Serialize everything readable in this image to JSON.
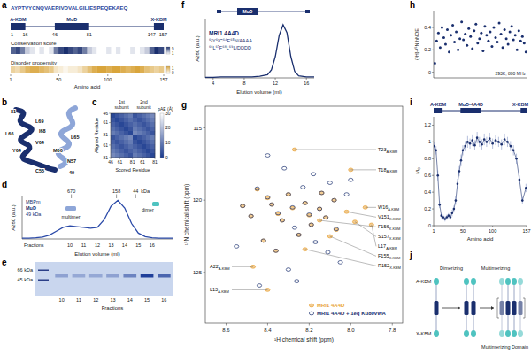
{
  "panel_letters": [
    "a",
    "b",
    "c",
    "d",
    "e",
    "f",
    "g",
    "h",
    "i",
    "j"
  ],
  "a": {
    "sequence": "AYPTVYCNQVAERIVDVALGILIESPEQEKAEQ",
    "domains": [
      {
        "label": "A-KBM",
        "start": 1,
        "end": 16
      },
      {
        "label": "MuD",
        "start": 46,
        "end": 81
      },
      {
        "label": "X-KBM",
        "start": 147,
        "end": 157
      }
    ],
    "conservation_title": "Conservation score",
    "conservation": [
      7,
      8,
      6,
      3,
      2,
      1,
      2,
      1,
      2,
      6,
      8,
      9,
      8,
      7,
      8,
      6,
      3,
      2,
      1,
      1,
      2,
      1,
      2,
      1,
      1,
      2,
      1,
      2,
      3,
      7,
      9,
      8
    ],
    "conservation_scale": [
      9,
      1
    ],
    "disorder_title": "Disorder propensity",
    "disorder": [
      0.5,
      0.4,
      0.6,
      0.8,
      0.9,
      0.9,
      0.8,
      0.7,
      0.6,
      0.3,
      0.2,
      0.1,
      0.2,
      0.2,
      0.3,
      0.5,
      0.7,
      0.9,
      1,
      1,
      0.9,
      1,
      1,
      0.9,
      0.8,
      0.9,
      1,
      0.9,
      0.7,
      0.6,
      0.5,
      0.6
    ],
    "disorder_scale": [
      1,
      0
    ],
    "xlim": [
      1,
      157
    ],
    "xticks": [
      1,
      50,
      100,
      157
    ],
    "xlabel": "Amino acid"
  },
  "b": {
    "labels": [
      "81",
      "L69",
      "L66",
      "I68",
      "L65",
      "V64",
      "Y64",
      "M66",
      "N57",
      "C55",
      "49"
    ]
  },
  "c": {
    "subunits": [
      "1st subunit",
      "2nd subunit"
    ],
    "xlabel": "Scored Residue",
    "ylabel": "Aligned Residue",
    "lim": [
      0,
      71
    ],
    "ticks": [
      {
        "value": 0,
        "label": "46"
      },
      {
        "value": 15,
        "label": "61"
      },
      {
        "value": 35,
        "label": "81"
      },
      {
        "value": 51,
        "label": "61"
      },
      {
        "value": 71,
        "label": "81"
      }
    ],
    "cells": [
      [
        2,
        4,
        6,
        8,
        10,
        4,
        6,
        8,
        10,
        12
      ],
      [
        4,
        2,
        4,
        6,
        8,
        6,
        4,
        6,
        8,
        10
      ],
      [
        6,
        4,
        2,
        4,
        6,
        8,
        6,
        4,
        6,
        8
      ],
      [
        8,
        6,
        4,
        2,
        4,
        10,
        8,
        6,
        4,
        6
      ],
      [
        10,
        8,
        6,
        4,
        2,
        12,
        10,
        8,
        6,
        4
      ],
      [
        4,
        6,
        8,
        10,
        12,
        2,
        4,
        6,
        8,
        10
      ],
      [
        6,
        4,
        6,
        8,
        10,
        4,
        2,
        4,
        6,
        8
      ],
      [
        8,
        6,
        4,
        6,
        8,
        6,
        4,
        2,
        4,
        6
      ],
      [
        10,
        8,
        6,
        4,
        6,
        8,
        6,
        4,
        2,
        4
      ],
      [
        12,
        10,
        8,
        6,
        4,
        10,
        8,
        6,
        4,
        2
      ]
    ],
    "colorbar": {
      "label": "pAE (Å)",
      "range": [
        0,
        30
      ],
      "ticks": [
        0,
        10,
        20,
        30
      ]
    }
  },
  "e": {
    "markers": [
      "66 kDa",
      "45 kDa"
    ],
    "xlabel": "Fractions",
    "lanes": [
      {
        "label": "10",
        "intensity": 0.35
      },
      {
        "label": "11",
        "intensity": 0.3
      },
      {
        "label": "12",
        "intensity": 0.3
      },
      {
        "label": "13",
        "intensity": 0.35
      },
      {
        "label": "14",
        "intensity": 0.55
      },
      {
        "label": "15",
        "intensity": 1.0
      },
      {
        "label": "16",
        "intensity": 0.75
      }
    ]
  },
  "j": {
    "labels": {
      "n_term": "A-KBM",
      "c_term": "X-KBM",
      "step1": "Dimerizing",
      "step2": "Multimerizing",
      "domain": "Multimerizing Domain"
    }
  },
  "chart_data": [
    {
      "type": "line",
      "color": "#2b4aa8",
      "x": [
        6,
        6.5,
        7,
        7.5,
        8,
        8.5,
        9,
        9.5,
        10,
        10.5,
        11,
        11.5,
        12,
        12.5,
        13,
        13.5,
        14,
        14.5,
        15,
        15.5,
        16,
        16.5,
        17
      ],
      "values": [
        0.02,
        0.02,
        0.03,
        0.05,
        0.1,
        0.2,
        0.3,
        0.34,
        0.32,
        0.3,
        0.28,
        0.3,
        0.5,
        0.85,
        1.0,
        0.8,
        0.4,
        0.15,
        0.06,
        0.03,
        0.02,
        0.02,
        0.02
      ],
      "xlim": [
        6,
        17
      ],
      "ylim": [
        0,
        1.1
      ],
      "tick_labels": false,
      "xlabel": "Elution volume (ml)",
      "ylabel": "A280 (a.u.)",
      "annotations": {
        "sample": [
          "MBPm",
          "MuD",
          "49 kDa"
        ],
        "states": [
          "multimer",
          "dimer"
        ],
        "standards": [
          {
            "label": "670",
            "x": 9.6
          },
          {
            "label": "158",
            "x": 12.9
          },
          {
            "label": "44",
            "x": 14.3
          }
        ],
        "standard_unit": "kDa"
      },
      "fractions": {
        "title": "Fractions",
        "labels": [
          "10",
          "11",
          "12",
          "13",
          "14",
          "15",
          "16"
        ],
        "x": [
          9.5,
          10.5,
          11.5,
          12.5,
          13.5,
          14.5,
          15.5
        ]
      }
    },
    {
      "type": "line",
      "color": "#1a2f6e",
      "title": "MRI1 4A4D",
      "domain": "MuD",
      "annotations": [
        "⁶²Y⁶³C⁶⁴E⁶⁵N/AAAA",
        "⁶⁶L⁶⁷F⁶⁸L⁶⁹L/DDDD"
      ],
      "x": [
        3,
        4,
        5,
        6,
        7,
        8,
        9,
        10,
        11,
        11.5,
        12,
        12.5,
        13,
        13.5,
        14,
        14.5,
        15,
        16,
        17
      ],
      "values": [
        0.01,
        0.01,
        0.02,
        0.02,
        0.02,
        0.02,
        0.02,
        0.03,
        0.06,
        0.15,
        0.4,
        0.8,
        1.0,
        0.85,
        0.4,
        0.12,
        0.04,
        0.02,
        0.02
      ],
      "xlim": [
        3,
        17
      ],
      "ylim": [
        0,
        1.1
      ],
      "xticks": [
        4,
        8,
        12,
        16
      ],
      "tick_labels": "x",
      "xlabel": "Elution volume (ml)",
      "ylabel": "A280 (a.u.)"
    },
    {
      "type": "scatter",
      "legend": "lower right",
      "xlim": [
        8.7,
        7.75
      ],
      "ylim": [
        113.5,
        128.5
      ],
      "xticks": [
        8.6,
        8.4,
        8.2,
        {
          "value": 8,
          "label": "8.0"
        },
        7.8
      ],
      "yticks": [
        115,
        120,
        125
      ],
      "xlabel": "¹H chemical shift (ppm)",
      "ylabel": "¹⁵N chemical shift (ppm)",
      "series": [
        {
          "name": "MRI1 4A4D",
          "color": "#e8a33a",
          "marker": "ellipse",
          "x": [
            8.45,
            8.4,
            8.38,
            8.35,
            8.33,
            8.3,
            8.28,
            8.25,
            8.22,
            8.2,
            8.19,
            8.15,
            8.14,
            8.12,
            8.08,
            8.07,
            8.42,
            8.36,
            8.48,
            8.52,
            8.27,
            8.0,
            7.93,
            7.9,
            8.02,
            7.98,
            8.15,
            8.1,
            8.22,
            8.4,
            8.47
          ],
          "values": [
            119.25,
            119.85,
            120.3,
            120.95,
            121.4,
            119.6,
            120.55,
            122.4,
            120.2,
            121.05,
            121.7,
            120.6,
            119.5,
            121.2,
            120.0,
            122.05,
            122.8,
            123.5,
            121.1,
            120.4,
            116.5,
            117.9,
            120.5,
            121.7,
            120.8,
            121.5,
            121.4,
            122.5,
            123.4,
            126.2,
            124.6
          ]
        },
        {
          "name": "MRI1 4A4D + 1eq Ku80vWA",
          "color": "#1a2f6e",
          "marker": "ellipse",
          "x": [
            8.45,
            8.4,
            8.38,
            8.35,
            8.33,
            8.3,
            8.28,
            8.27,
            8.25,
            8.23,
            8.22,
            8.2,
            8.19,
            8.17,
            8.15,
            8.14,
            8.12,
            8.11,
            8.1,
            8.08,
            8.07,
            8.05,
            8.42,
            8.36,
            8.3,
            8.48,
            8.52,
            8.55,
            8.18,
            8.32,
            8.4,
            8.26,
            8.02,
            8.0,
            8.44
          ],
          "values": [
            119.2,
            119.8,
            120.3,
            120.9,
            121.4,
            119.6,
            120.5,
            121.9,
            122.4,
            119.1,
            120.2,
            121.0,
            121.7,
            122.9,
            120.6,
            119.5,
            121.2,
            123.6,
            118.8,
            120.0,
            122.0,
            124.3,
            122.8,
            123.5,
            124.8,
            121.1,
            120.4,
            123.2,
            118.2,
            117.8,
            116.9,
            125.6,
            119.6,
            118.6,
            125.9
          ]
        }
      ],
      "annotations": [
        {
          "text": "T23",
          "sub": "A-KBM",
          "x": 8.27,
          "y": 116.5
        },
        {
          "text": "T18",
          "sub": "A-KBM",
          "x": 8.0,
          "y": 117.9
        },
        {
          "text": "W16",
          "sub": "A-KBM",
          "x": 7.93,
          "y": 120.5
        },
        {
          "text": "L17",
          "sub": "A-KBM",
          "x": 7.9,
          "y": 121.7
        },
        {
          "text": "V151",
          "sub": "X-KBM",
          "x": 8.02,
          "y": 120.8
        },
        {
          "text": "S157",
          "sub": "X-KBM",
          "x": 7.98,
          "y": 121.5
        },
        {
          "text": "F156",
          "sub": "X-KBM",
          "x": 8.15,
          "y": 121.4
        },
        {
          "text": "F155",
          "sub": "X-KBM",
          "x": 8.1,
          "y": 122.5
        },
        {
          "text": "R152",
          "sub": "X-KBM",
          "x": 8.22,
          "y": 123.4
        },
        {
          "text": "L13",
          "sub": "A-KBM",
          "x": 8.4,
          "y": 126.2
        },
        {
          "text": "A22",
          "sub": "A-KBM",
          "x": 8.47,
          "y": 124.6
        }
      ]
    },
    {
      "type": "scatter",
      "color": "#1a2f6e",
      "tick_labels": "y",
      "xlim": [
        1,
        157
      ],
      "ylim": [
        -0.05,
        0.55
      ],
      "yticks": [
        0,
        0.2,
        0.4
      ],
      "ylabel": "{¹H}-¹⁵N hNOE",
      "annotations": [
        "293K, 800 MHz"
      ],
      "x": [
        3,
        6,
        9,
        12,
        15,
        18,
        21,
        24,
        27,
        30,
        33,
        36,
        39,
        42,
        45,
        48,
        51,
        54,
        57,
        60,
        63,
        66,
        69,
        72,
        75,
        78,
        81,
        84,
        87,
        90,
        93,
        96,
        99,
        102,
        105,
        108,
        111,
        114,
        117,
        120,
        123,
        126,
        129,
        132,
        135,
        138,
        141,
        144,
        147,
        150,
        153,
        156
      ],
      "values": [
        0.08,
        0.28,
        0.35,
        0.22,
        0.4,
        0.31,
        0.25,
        0.38,
        0.18,
        0.33,
        0.42,
        0.27,
        0.36,
        0.2,
        0.3,
        0.45,
        0.29,
        0.34,
        0.24,
        0.39,
        0.32,
        0.21,
        0.37,
        0.43,
        0.26,
        0.3,
        0.35,
        0.19,
        0.41,
        0.33,
        0.28,
        0.36,
        0.23,
        0.4,
        0.31,
        0.27,
        0.44,
        0.34,
        0.22,
        0.38,
        0.3,
        0.25,
        0.36,
        0.41,
        0.29,
        0.33,
        0.2,
        0.37,
        0.28,
        0.32,
        0.26,
        0.18
      ]
    },
    {
      "type": "scatter",
      "color": "#1a2f6e",
      "xlim": [
        1,
        157
      ],
      "xticks": [
        1,
        50,
        100,
        157
      ],
      "ylim": [
        0,
        1.3
      ],
      "yticks": [
        0,
        0.2,
        0.4,
        0.6,
        0.8,
        1,
        1.2
      ],
      "xlabel": "Amino acid",
      "ylabel": "I/I₀",
      "annotations": [
        {
          "text": "A-KBM",
          "start": 1,
          "end": 16
        },
        {
          "text": "MuD-4A4D",
          "start": 46,
          "end": 81
        },
        {
          "text": "X-KBM",
          "start": 147,
          "end": 157
        }
      ],
      "x": [
        2,
        5,
        8,
        11,
        14,
        17,
        20,
        23,
        26,
        29,
        32,
        35,
        38,
        41,
        44,
        47,
        50,
        54,
        58,
        62,
        66,
        70,
        74,
        78,
        82,
        86,
        90,
        95,
        100,
        105,
        110,
        115,
        120,
        125,
        130,
        135,
        140,
        145,
        150,
        156
      ],
      "values": [
        0.95,
        0.9,
        0.6,
        0.25,
        0.12,
        0.1,
        0.08,
        0.1,
        0.12,
        0.1,
        0.15,
        0.2,
        0.3,
        0.5,
        0.65,
        0.78,
        0.9,
        0.95,
        1.0,
        0.98,
        1.02,
        0.96,
        1.05,
        1.0,
        0.97,
        1.03,
        1.0,
        1.04,
        0.98,
        1.02,
        1.0,
        0.97,
        1.03,
        1.0,
        0.95,
        0.9,
        0.8,
        0.55,
        0.3,
        0.45
      ],
      "errors": [
        0.05,
        0.05,
        0.06,
        0.04,
        0.03,
        0.03,
        0.03,
        0.03,
        0.03,
        0.03,
        0.04,
        0.04,
        0.05,
        0.06,
        0.06,
        0.07,
        0.06,
        0.06,
        0.07,
        0.06,
        0.07,
        0.06,
        0.07,
        0.06,
        0.06,
        0.07,
        0.06,
        0.07,
        0.06,
        0.06,
        0.06,
        0.06,
        0.07,
        0.06,
        0.06,
        0.06,
        0.06,
        0.05,
        0.04,
        0.05
      ]
    }
  ]
}
